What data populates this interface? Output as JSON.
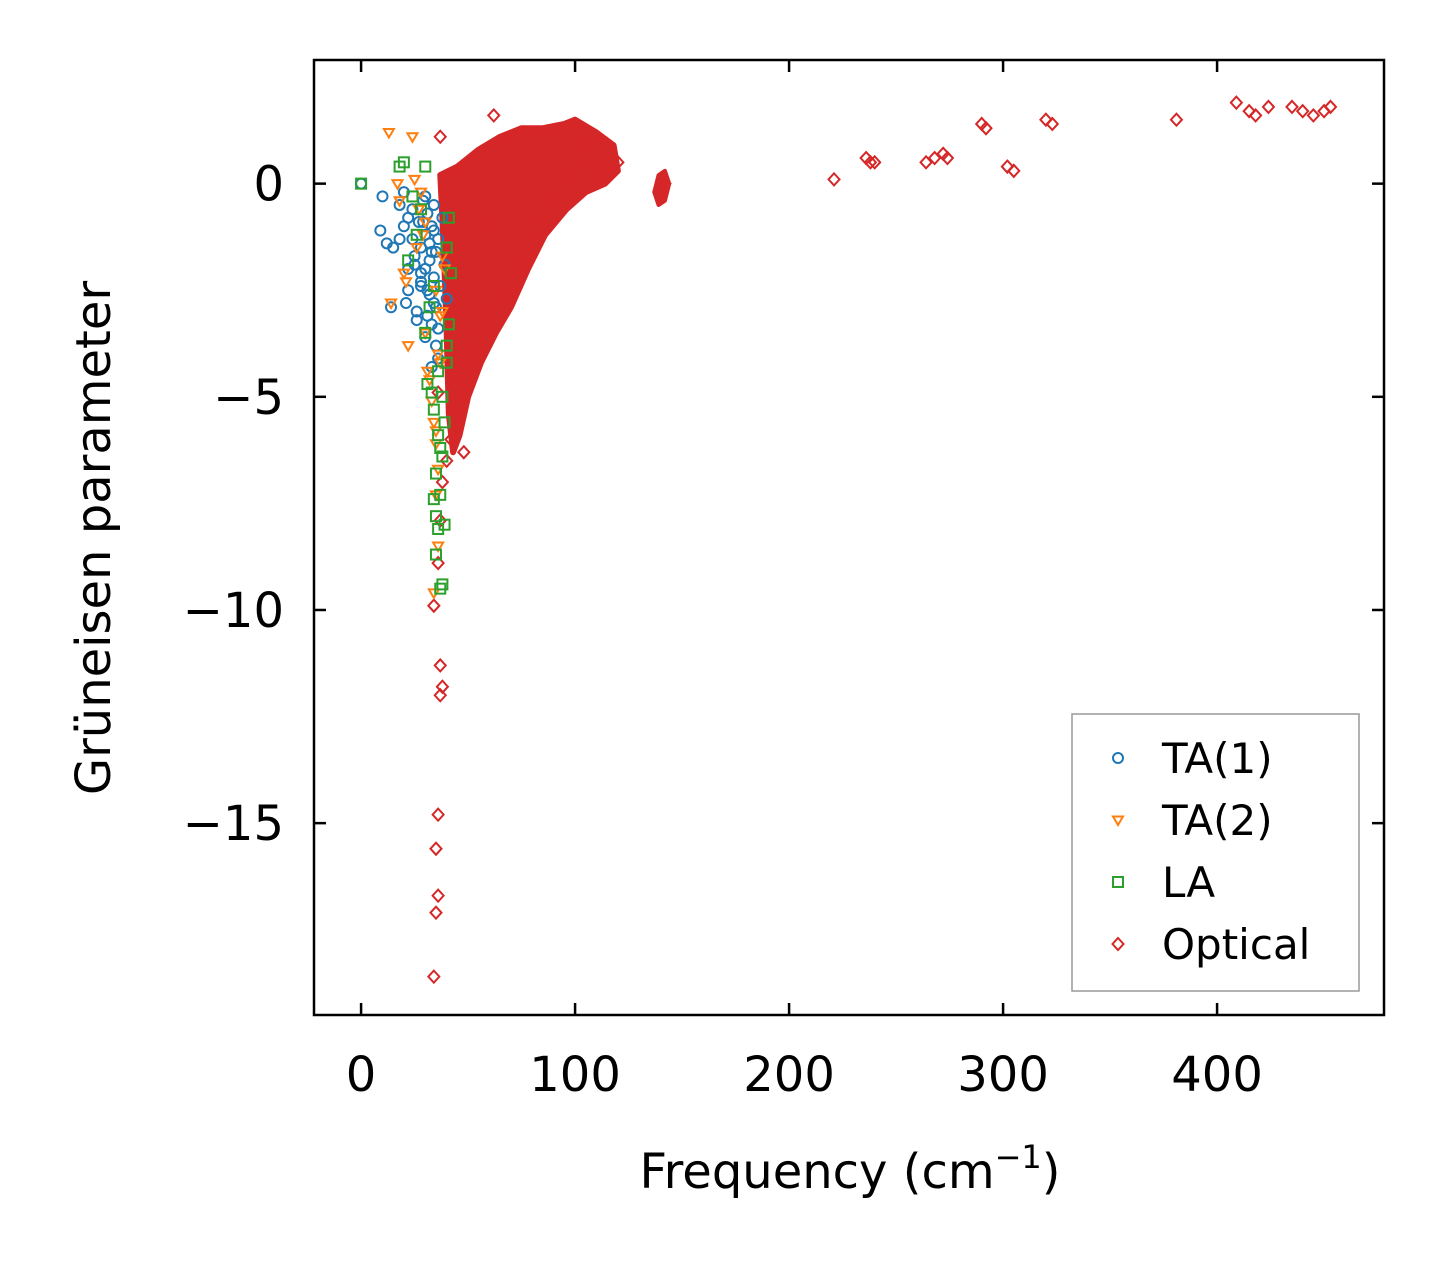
{
  "chart_data": {
    "type": "scatter",
    "title": "",
    "xlabel": "Frequency (cm",
    "xlabel_sup": "−1",
    "xlabel_close": ")",
    "ylabel": "Grüneisen parameter",
    "xlim": [
      -22,
      478
    ],
    "ylim": [
      -19.5,
      2.9
    ],
    "xticks": [
      0,
      100,
      200,
      300,
      400
    ],
    "yticks": [
      0,
      -5,
      -10,
      -15
    ],
    "xtick_labels": [
      "0",
      "100",
      "200",
      "300",
      "400"
    ],
    "ytick_labels": [
      "0",
      "−5",
      "−10",
      "−15"
    ],
    "legend_position": "bottom-right",
    "series": [
      {
        "name": "TA(1)",
        "marker": "circle",
        "color": "#1f77b4",
        "x": [
          0,
          9,
          10,
          12,
          14,
          18,
          20,
          21,
          22,
          24,
          25,
          26,
          27,
          28,
          28,
          29,
          30,
          30,
          31,
          31,
          32,
          32,
          33,
          33,
          34,
          34,
          35,
          35,
          36,
          36,
          37,
          38,
          39,
          40,
          15,
          18,
          20,
          22,
          24,
          26,
          28,
          30,
          33,
          35,
          22,
          25,
          28,
          31,
          34,
          30,
          32,
          34,
          36,
          29,
          33
        ],
        "y": [
          0.0,
          -1.1,
          -0.3,
          -1.4,
          -2.9,
          -1.3,
          -0.2,
          -2.8,
          -2.5,
          -0.6,
          -1.9,
          -3.0,
          -0.9,
          -1.5,
          -2.3,
          -0.4,
          -1.2,
          -2.0,
          -3.1,
          -0.7,
          -1.8,
          -2.6,
          -1.0,
          -3.3,
          -2.2,
          -0.5,
          -1.6,
          -2.9,
          -4.1,
          -1.3,
          -2.4,
          -0.8,
          -1.9,
          -2.7,
          -1.5,
          -0.5,
          -1.0,
          -2.0,
          -1.3,
          -3.2,
          -2.4,
          -3.6,
          -4.3,
          -3.8,
          -0.8,
          -1.7,
          -2.1,
          -2.5,
          -1.1,
          -0.3,
          -1.4,
          -2.8,
          -3.4,
          -0.9,
          -1.6
        ]
      },
      {
        "name": "TA(2)",
        "marker": "triangle-down",
        "color": "#ff7f0e",
        "x": [
          13,
          17,
          18,
          20,
          22,
          24,
          26,
          28,
          30,
          32,
          34,
          34,
          35,
          35,
          36,
          36,
          37,
          38,
          39,
          14,
          21,
          27,
          29,
          31,
          33,
          35,
          36,
          37,
          38,
          25,
          30,
          35
        ],
        "y": [
          1.2,
          0.0,
          -0.4,
          -2.1,
          -3.8,
          1.1,
          -1.5,
          -0.2,
          -3.5,
          -4.6,
          -5.6,
          -9.6,
          -6.1,
          -7.3,
          -8.5,
          -6.7,
          -4.2,
          -3.0,
          -2.0,
          -2.8,
          -2.3,
          -0.6,
          -1.2,
          -4.4,
          -5.1,
          -5.8,
          -4.0,
          -3.1,
          -1.7,
          0.1,
          -0.9,
          -2.5
        ]
      },
      {
        "name": "LA",
        "marker": "square",
        "color": "#2ca02c",
        "x": [
          0,
          18,
          20,
          22,
          24,
          26,
          28,
          30,
          30,
          31,
          32,
          33,
          34,
          34,
          35,
          35,
          36,
          36,
          37,
          37,
          38,
          38,
          39,
          39,
          40,
          40,
          41,
          41,
          42,
          36,
          38,
          40,
          34,
          35,
          37
        ],
        "y": [
          0.0,
          0.4,
          0.5,
          -1.8,
          -0.3,
          -1.2,
          -0.6,
          0.4,
          -3.5,
          -4.7,
          -2.9,
          -4.9,
          -5.3,
          -7.4,
          -6.8,
          -8.7,
          -5.9,
          -8.1,
          -7.3,
          -9.5,
          -6.4,
          -9.4,
          -5.6,
          -8.0,
          -4.2,
          -1.5,
          -3.3,
          -0.8,
          -2.1,
          -4.4,
          -5.0,
          -3.8,
          -2.4,
          -7.8,
          -6.2
        ]
      },
      {
        "name": "Optical",
        "marker": "diamond",
        "color": "#d62728",
        "x": [
          34,
          35,
          35,
          36,
          36,
          37,
          37,
          38,
          34,
          36,
          37,
          38,
          40,
          42,
          44,
          46,
          48,
          50,
          52,
          55,
          58,
          60,
          62,
          65,
          70,
          75,
          80,
          85,
          90,
          95,
          100,
          105,
          110,
          115,
          120,
          140,
          142,
          221,
          236,
          238,
          240,
          264,
          268,
          272,
          274,
          290,
          292,
          302,
          305,
          320,
          323,
          381,
          409,
          415,
          418,
          424,
          435,
          440,
          445,
          450,
          453,
          37,
          62,
          48,
          36
        ],
        "y": [
          -18.6,
          -17.1,
          -15.6,
          -14.8,
          -16.7,
          -12.0,
          -11.3,
          -11.8,
          -9.9,
          -8.9,
          -7.9,
          -7.0,
          -6.5,
          -6.0,
          -5.5,
          -5.0,
          -4.6,
          -4.2,
          -3.9,
          -3.5,
          -3.3,
          -3.0,
          -1.0,
          -2.7,
          -2.5,
          -2.0,
          -1.4,
          -0.8,
          -0.3,
          0.2,
          0.5,
          0.9,
          0.4,
          0.3,
          0.5,
          -0.1,
          0.0,
          0.1,
          0.6,
          0.5,
          0.5,
          0.5,
          0.6,
          0.7,
          0.6,
          1.4,
          1.3,
          0.4,
          0.3,
          1.5,
          1.4,
          1.5,
          1.9,
          1.7,
          1.6,
          1.8,
          1.8,
          1.7,
          1.6,
          1.7,
          1.8,
          1.1,
          1.6,
          -6.3,
          -4.9
        ]
      }
    ],
    "dense_cloud": {
      "series": "Optical",
      "color": "#d62728",
      "boundary": [
        [
          37,
          0.2
        ],
        [
          45,
          0.4
        ],
        [
          55,
          0.8
        ],
        [
          65,
          1.1
        ],
        [
          75,
          1.3
        ],
        [
          85,
          1.3
        ],
        [
          95,
          1.4
        ],
        [
          100,
          1.5
        ],
        [
          110,
          1.2
        ],
        [
          118,
          0.9
        ],
        [
          120,
          0.3
        ],
        [
          114,
          0.0
        ],
        [
          105,
          -0.2
        ],
        [
          96,
          -0.6
        ],
        [
          86,
          -1.2
        ],
        [
          78,
          -2.0
        ],
        [
          70,
          -2.9
        ],
        [
          63,
          -3.5
        ],
        [
          56,
          -4.2
        ],
        [
          50,
          -5.0
        ],
        [
          46,
          -5.9
        ],
        [
          43,
          -6.3
        ],
        [
          41,
          -5.4
        ],
        [
          40,
          -3.5
        ],
        [
          39,
          -2.0
        ],
        [
          38,
          -0.8
        ]
      ],
      "blob_boundary": [
        [
          137,
          -0.2
        ],
        [
          139,
          0.2
        ],
        [
          142,
          0.3
        ],
        [
          144,
          0.0
        ],
        [
          142,
          -0.4
        ],
        [
          139,
          -0.5
        ]
      ]
    },
    "legend": {
      "entries": [
        "TA(1)",
        "TA(2)",
        "LA",
        "Optical"
      ]
    }
  }
}
